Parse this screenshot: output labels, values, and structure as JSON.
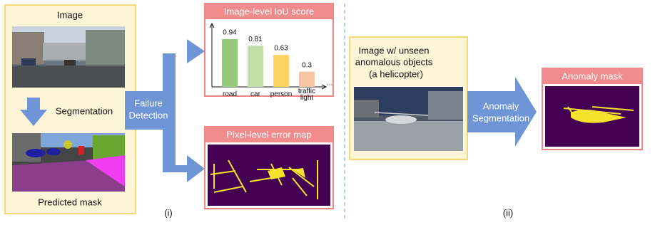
{
  "left_panel": {
    "title": "Image",
    "step": "Segmentation",
    "caption": "Predicted mask"
  },
  "failure_arrow": {
    "lines": [
      "Failure",
      "Detection"
    ]
  },
  "chart_data": {
    "type": "bar",
    "title": "Image-level IoU score",
    "categories": [
      "road",
      "car",
      "person",
      "traffic light"
    ],
    "values": [
      0.94,
      0.81,
      0.63,
      0.3
    ],
    "colors": [
      "#93c97c",
      "#bfe0a8",
      "#fdd35f",
      "#f9c4a4"
    ],
    "axis_continuation": "..."
  },
  "pixel_panel": {
    "title": "Pixel-level error map"
  },
  "part_labels": {
    "first": "(i)",
    "second": "(ii)"
  },
  "anomaly_input": {
    "lines": [
      "Image w/ unseen",
      "anomalous objects",
      "(a helicopter)"
    ]
  },
  "anomaly_arrow": {
    "lines": [
      "Anomaly",
      "Segmentation"
    ]
  },
  "anomaly_mask": {
    "title": "Anomaly mask"
  }
}
